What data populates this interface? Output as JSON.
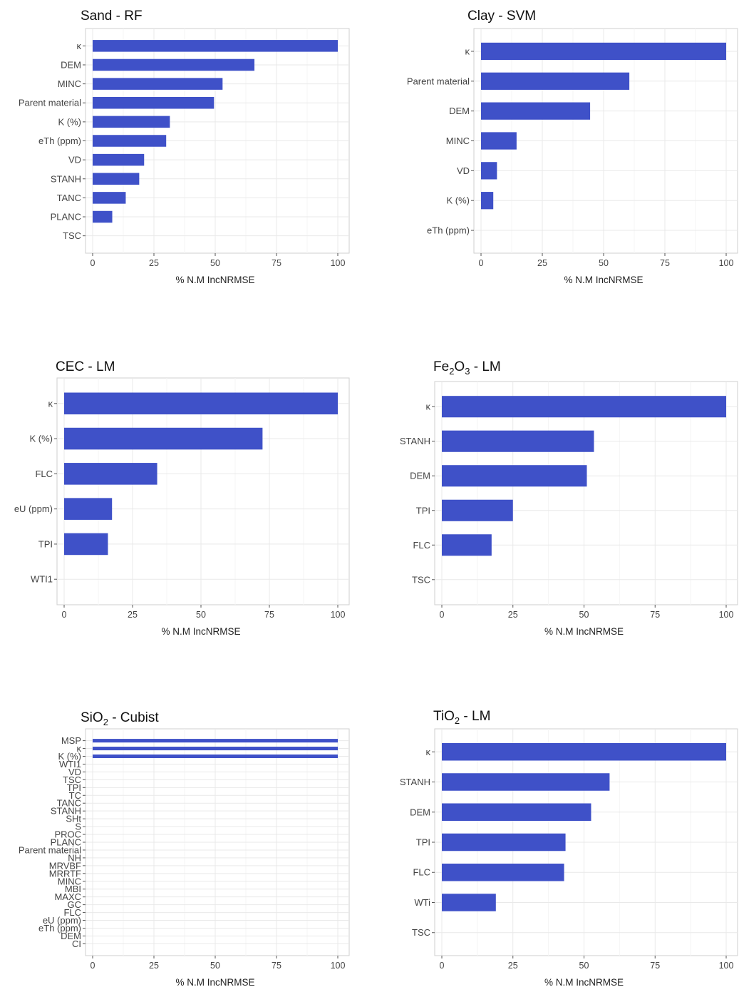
{
  "figure": {
    "bar_color": "#3f51c8"
  },
  "chart_data": [
    {
      "type": "bar",
      "orientation": "horizontal",
      "title": "Sand - RF",
      "xlabel": "% N.M IncNRMSE",
      "ylabel": "",
      "xlim": [
        0,
        100
      ],
      "xticks": [
        "0",
        "25",
        "50",
        "75",
        "100"
      ],
      "categories": [
        "κ",
        "DEM",
        "MINC",
        "Parent material",
        "K (%)",
        "eTh (ppm)",
        "VD",
        "STANH",
        "TANC",
        "PLANC",
        "TSC"
      ],
      "values": [
        100,
        66,
        53,
        49.5,
        31.5,
        30,
        21,
        19,
        13.5,
        8,
        0
      ],
      "grid": true
    },
    {
      "type": "bar",
      "orientation": "horizontal",
      "title": "Clay - SVM",
      "xlabel": "% N.M IncNRMSE",
      "ylabel": "",
      "xlim": [
        0,
        100
      ],
      "xticks": [
        "0",
        "25",
        "50",
        "75",
        "100"
      ],
      "categories": [
        "κ",
        "Parent material",
        "DEM",
        "MINC",
        "VD",
        "K (%)",
        "eTh (ppm)"
      ],
      "values": [
        100,
        60.5,
        44.5,
        14.5,
        6.5,
        5,
        0
      ],
      "grid": true
    },
    {
      "type": "bar",
      "orientation": "horizontal",
      "title": "CEC - LM",
      "xlabel": "% N.M IncNRMSE",
      "ylabel": "",
      "xlim": [
        0,
        100
      ],
      "xticks": [
        "0",
        "25",
        "50",
        "75",
        "100"
      ],
      "categories": [
        "κ",
        "K (%)",
        "FLC",
        "eU (ppm)",
        "TPI",
        "WTI1"
      ],
      "values": [
        100,
        72.5,
        34,
        17.5,
        16,
        0
      ],
      "grid": true
    },
    {
      "type": "bar",
      "orientation": "horizontal",
      "title": "Fe",
      "title_sub": "2",
      "title_mid": "O",
      "title_sub2": "3",
      "title_tail": " - LM",
      "xlabel": "% N.M IncNRMSE",
      "ylabel": "",
      "xlim": [
        0,
        100
      ],
      "xticks": [
        "0",
        "25",
        "50",
        "75",
        "100"
      ],
      "categories": [
        "κ",
        "STANH",
        "DEM",
        "TPI",
        "FLC",
        "TSC"
      ],
      "values": [
        100,
        53.5,
        51,
        25,
        17.5,
        0
      ],
      "grid": true
    },
    {
      "type": "bar",
      "orientation": "horizontal",
      "title": "SiO",
      "title_sub": "2",
      "title_tail": " - Cubist",
      "xlabel": "% N.M IncNRMSE",
      "ylabel": "",
      "xlim": [
        0,
        100
      ],
      "xticks": [
        "0",
        "25",
        "50",
        "75",
        "100"
      ],
      "categories": [
        "MSP",
        "κ",
        "K (%)",
        "WTI1",
        "VD",
        "TSC",
        "TPI",
        "TC",
        "TANC",
        "STANH",
        "SHt",
        "S",
        "PROC",
        "PLANC",
        "Parent material",
        "NH",
        "MRVBF",
        "MRRTF",
        "MINC",
        "MBI",
        "MAXC",
        "GC",
        "FLC",
        "eU (ppm)",
        "eTh (ppm)",
        "DEM",
        "CI"
      ],
      "values": [
        100,
        100,
        100,
        0,
        0,
        0,
        0,
        0,
        0,
        0,
        0,
        0,
        0,
        0,
        0,
        0,
        0,
        0,
        0,
        0,
        0,
        0,
        0,
        0,
        0,
        0,
        0
      ],
      "grid": true
    },
    {
      "type": "bar",
      "orientation": "horizontal",
      "title": "TiO",
      "title_sub": "2",
      "title_tail": " - LM",
      "xlabel": "% N.M IncNRMSE",
      "ylabel": "",
      "xlim": [
        0,
        100
      ],
      "xticks": [
        "0",
        "25",
        "50",
        "75",
        "100"
      ],
      "categories": [
        "κ",
        "STANH",
        "DEM",
        "TPI",
        "FLC",
        "WTi",
        "TSC"
      ],
      "values": [
        100,
        59,
        52.5,
        43.5,
        43,
        19,
        0
      ],
      "grid": true
    }
  ]
}
